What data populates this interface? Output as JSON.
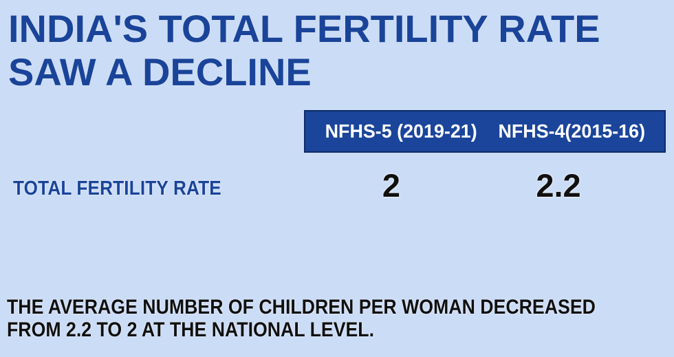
{
  "colors": {
    "bg": "#cbdcf6",
    "title-blue": "#1a4499",
    "bar-blue": "#1a459b",
    "bar-border": "#0e2c66",
    "header-text": "#ffffff",
    "value-text": "#101010"
  },
  "title": {
    "line1": "INDIA'S TOTAL FERTILITY RATE",
    "line2": "SAW A DECLINE"
  },
  "table": {
    "header": {
      "columns": [
        "NFHS-5 (2019-21)",
        "NFHS-4(2015-16)"
      ]
    },
    "rows": [
      {
        "label": "TOTAL FERTILITY RATE",
        "values": [
          "2",
          "2.2"
        ]
      }
    ]
  },
  "footer": {
    "line1": "THE AVERAGE NUMBER OF CHILDREN PER WOMAN DECREASED",
    "line2": "FROM 2.2 TO 2 AT THE NATIONAL LEVEL."
  },
  "chart_data": {
    "type": "table",
    "title": "INDIA'S TOTAL FERTILITY RATE SAW A DECLINE",
    "columns": [
      "NFHS-5 (2019-21)",
      "NFHS-4(2015-16)"
    ],
    "rows": [
      {
        "label": "TOTAL FERTILITY RATE",
        "values": [
          2,
          2.2
        ]
      }
    ],
    "note": "THE AVERAGE NUMBER OF CHILDREN PER WOMAN DECREASED FROM 2.2 TO 2 AT THE NATIONAL LEVEL."
  }
}
